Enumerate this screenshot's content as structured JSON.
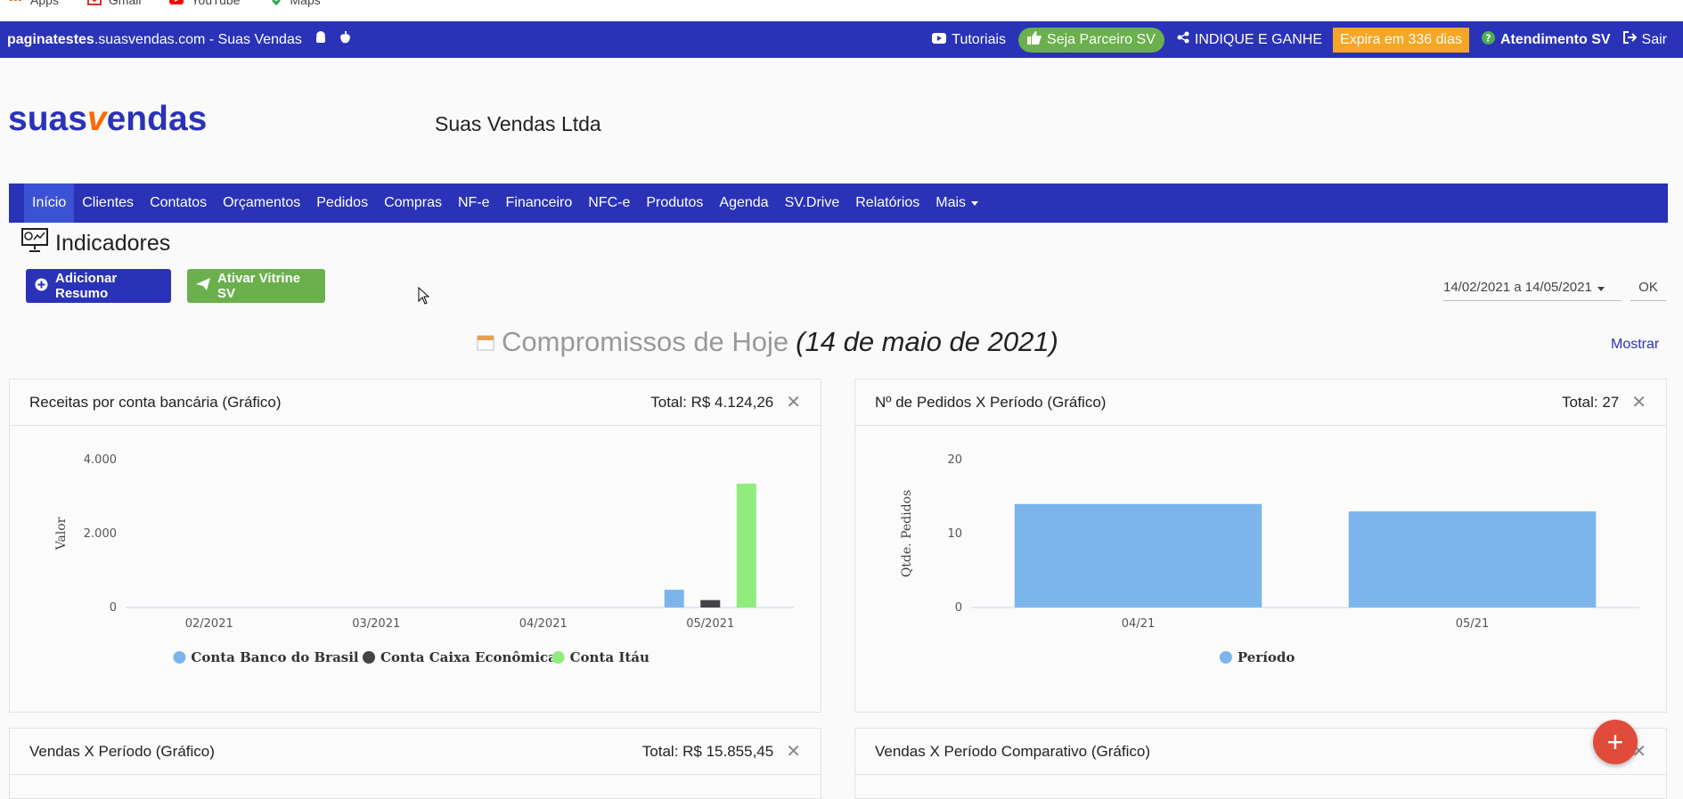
{
  "bookmarks": [
    {
      "label": "Apps",
      "icon": "apps-grid-icon",
      "color": "#e8710a"
    },
    {
      "label": "Gmail",
      "icon": "gmail-icon",
      "color": "#d93025"
    },
    {
      "label": "YouTube",
      "icon": "youtube-icon",
      "color": "#ff0000"
    },
    {
      "label": "Maps",
      "icon": "maps-icon",
      "color": "#34a853"
    }
  ],
  "topbar": {
    "site_bold": "paginatestes",
    "site_rest": ".suasvendas.com - Suas Vendas",
    "tutoriais": "Tutoriais",
    "parceiro": "Seja Parceiro SV",
    "indique": "INDIQUE E GANHE",
    "expira": "Expira em 336 dias",
    "atendimento": "Atendimento SV",
    "sair": "Sair"
  },
  "header": {
    "logo_pre": "suas",
    "logo_v": "v",
    "logo_post": "endas",
    "company": "Suas Vendas Ltda"
  },
  "nav": [
    "Início",
    "Clientes",
    "Contatos",
    "Orçamentos",
    "Pedidos",
    "Compras",
    "NF-e",
    "Financeiro",
    "NFC-e",
    "Produtos",
    "Agenda",
    "SV.Drive",
    "Relatórios",
    "Mais"
  ],
  "page": {
    "title": "Indicadores",
    "add_button": "Adicionar Resumo",
    "vitrine_button": "Ativar Vitrine SV",
    "date_range": "14/02/2021 a 14/05/2021",
    "ok": "OK",
    "compromissos": "Compromissos de Hoje",
    "compromissos_date": "(14 de maio de 2021)",
    "mostrar": "Mostrar"
  },
  "cards": [
    {
      "title": "Receitas por conta bancária (Gráfico)",
      "total": "Total: R$ 4.124,26"
    },
    {
      "title": "Nº de Pedidos X Período (Gráfico)",
      "total": "Total: 27"
    },
    {
      "title": "Vendas X Período (Gráfico)",
      "total": "Total: R$ 15.855,45"
    },
    {
      "title": "Vendas X Período Comparativo (Gráfico)",
      "total": ""
    }
  ],
  "colors": {
    "primary": "#2a32b8",
    "green": "#6ab04c",
    "orange": "#f5a623",
    "fab": "#e04b3b"
  },
  "chart_data": [
    {
      "type": "bar",
      "ylabel": "Valor",
      "categories": [
        "02/2021",
        "03/2021",
        "04/2021",
        "05/2021"
      ],
      "ylim": [
        0,
        4000
      ],
      "yticks": [
        "0",
        "2.000",
        "4.000"
      ],
      "series": [
        {
          "name": "Conta Banco do Brasil",
          "color": "#7cb5ec",
          "values": [
            0,
            0,
            0,
            480
          ]
        },
        {
          "name": "Conta Caixa Econômica",
          "color": "#434348",
          "values": [
            0,
            0,
            0,
            200
          ]
        },
        {
          "name": "Conta Itáu",
          "color": "#90ed7d",
          "values": [
            0,
            0,
            0,
            3350
          ]
        }
      ],
      "legend": "bottom"
    },
    {
      "type": "bar",
      "ylabel": "Qtde. Pedidos",
      "categories": [
        "04/21",
        "05/21"
      ],
      "ylim": [
        0,
        20
      ],
      "yticks": [
        "0",
        "10",
        "20"
      ],
      "series": [
        {
          "name": "Período",
          "color": "#7cb5ec",
          "values": [
            14,
            13
          ]
        }
      ],
      "legend": "bottom"
    }
  ]
}
